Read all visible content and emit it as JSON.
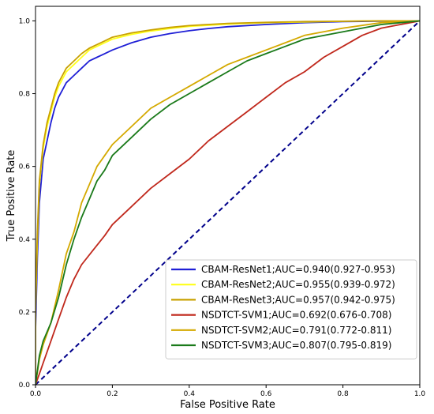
{
  "chart_data": {
    "type": "line",
    "title": "",
    "xlabel": "False Positive Rate",
    "ylabel": "True Positive Rate",
    "xlim": [
      0,
      1
    ],
    "ylim": [
      0,
      1.04
    ],
    "xticks": [
      "0.0",
      "0.2",
      "0.4",
      "0.6",
      "0.8",
      "1.0"
    ],
    "yticks": [
      "0.0",
      "0.2",
      "0.4",
      "0.6",
      "0.8",
      "1.0"
    ],
    "grid": false,
    "legend_position": "lower-right",
    "diagonal_color": "#00008b",
    "series": [
      {
        "name": "CBAM-ResNet1;AUC=0.940(0.927-0.953)",
        "color": "#1f1fd6",
        "x": [
          0.0,
          0.0,
          0.005,
          0.01,
          0.015,
          0.02,
          0.03,
          0.04,
          0.05,
          0.06,
          0.07,
          0.08,
          0.1,
          0.12,
          0.14,
          0.16,
          0.18,
          0.2,
          0.25,
          0.3,
          0.35,
          0.4,
          0.45,
          0.5,
          0.6,
          0.7,
          0.8,
          0.9,
          1.0
        ],
        "y": [
          0.0,
          0.15,
          0.35,
          0.5,
          0.56,
          0.62,
          0.67,
          0.72,
          0.76,
          0.79,
          0.81,
          0.83,
          0.85,
          0.87,
          0.89,
          0.9,
          0.91,
          0.92,
          0.94,
          0.955,
          0.965,
          0.973,
          0.979,
          0.984,
          0.99,
          0.995,
          0.998,
          0.999,
          1.0
        ]
      },
      {
        "name": "CBAM-ResNet2;AUC=0.955(0.939-0.972)",
        "color": "#ffff1a",
        "x": [
          0.0,
          0.0,
          0.005,
          0.01,
          0.015,
          0.02,
          0.03,
          0.04,
          0.05,
          0.06,
          0.07,
          0.08,
          0.1,
          0.12,
          0.14,
          0.16,
          0.18,
          0.2,
          0.25,
          0.3,
          0.35,
          0.4,
          0.45,
          0.5,
          0.6,
          0.7,
          0.8,
          0.9,
          1.0
        ],
        "y": [
          0.0,
          0.2,
          0.4,
          0.55,
          0.6,
          0.65,
          0.71,
          0.75,
          0.79,
          0.82,
          0.84,
          0.86,
          0.88,
          0.9,
          0.92,
          0.93,
          0.94,
          0.95,
          0.963,
          0.972,
          0.979,
          0.985,
          0.988,
          0.991,
          0.995,
          0.997,
          0.999,
          1.0,
          1.0
        ]
      },
      {
        "name": "CBAM-ResNet3;AUC=0.957(0.942-0.975)",
        "color": "#c9a100",
        "x": [
          0.0,
          0.0,
          0.005,
          0.01,
          0.015,
          0.02,
          0.03,
          0.04,
          0.05,
          0.06,
          0.07,
          0.08,
          0.1,
          0.12,
          0.14,
          0.16,
          0.18,
          0.2,
          0.25,
          0.3,
          0.35,
          0.4,
          0.45,
          0.5,
          0.6,
          0.7,
          0.8,
          0.9,
          1.0
        ],
        "y": [
          0.0,
          0.22,
          0.42,
          0.56,
          0.61,
          0.66,
          0.72,
          0.76,
          0.8,
          0.83,
          0.85,
          0.87,
          0.89,
          0.91,
          0.925,
          0.935,
          0.945,
          0.955,
          0.967,
          0.975,
          0.982,
          0.987,
          0.99,
          0.993,
          0.996,
          0.998,
          0.999,
          1.0,
          1.0
        ]
      },
      {
        "name": "NSDTCT-SVM1;AUC=0.692(0.676-0.708)",
        "color": "#c0281c",
        "x": [
          0.0,
          0.01,
          0.02,
          0.04,
          0.06,
          0.08,
          0.1,
          0.12,
          0.15,
          0.18,
          0.2,
          0.25,
          0.3,
          0.35,
          0.4,
          0.45,
          0.5,
          0.55,
          0.6,
          0.65,
          0.7,
          0.75,
          0.8,
          0.85,
          0.9,
          0.95,
          1.0
        ],
        "y": [
          0.0,
          0.03,
          0.06,
          0.12,
          0.18,
          0.24,
          0.29,
          0.33,
          0.37,
          0.41,
          0.44,
          0.49,
          0.54,
          0.58,
          0.62,
          0.67,
          0.71,
          0.75,
          0.79,
          0.83,
          0.86,
          0.9,
          0.93,
          0.96,
          0.98,
          0.99,
          1.0
        ]
      },
      {
        "name": "NSDTCT-SVM2;AUC=0.791(0.772-0.811)",
        "color": "#d4a900",
        "x": [
          0.0,
          0.01,
          0.02,
          0.04,
          0.06,
          0.08,
          0.1,
          0.12,
          0.14,
          0.16,
          0.18,
          0.2,
          0.25,
          0.3,
          0.35,
          0.4,
          0.45,
          0.5,
          0.55,
          0.6,
          0.65,
          0.7,
          0.8,
          0.9,
          1.0
        ],
        "y": [
          0.0,
          0.07,
          0.11,
          0.17,
          0.26,
          0.36,
          0.42,
          0.5,
          0.55,
          0.6,
          0.63,
          0.66,
          0.71,
          0.76,
          0.79,
          0.82,
          0.85,
          0.88,
          0.9,
          0.92,
          0.94,
          0.96,
          0.98,
          0.995,
          1.0
        ]
      },
      {
        "name": "NSDTCT-SVM3;AUC=0.807(0.795-0.819)",
        "color": "#1a7a1a",
        "x": [
          0.0,
          0.01,
          0.02,
          0.04,
          0.06,
          0.08,
          0.1,
          0.12,
          0.14,
          0.16,
          0.18,
          0.2,
          0.25,
          0.3,
          0.35,
          0.4,
          0.45,
          0.5,
          0.55,
          0.6,
          0.65,
          0.7,
          0.8,
          0.9,
          1.0
        ],
        "y": [
          0.0,
          0.08,
          0.12,
          0.17,
          0.24,
          0.33,
          0.4,
          0.46,
          0.51,
          0.56,
          0.59,
          0.63,
          0.68,
          0.73,
          0.77,
          0.8,
          0.83,
          0.86,
          0.89,
          0.91,
          0.93,
          0.95,
          0.97,
          0.99,
          1.0
        ]
      }
    ]
  }
}
